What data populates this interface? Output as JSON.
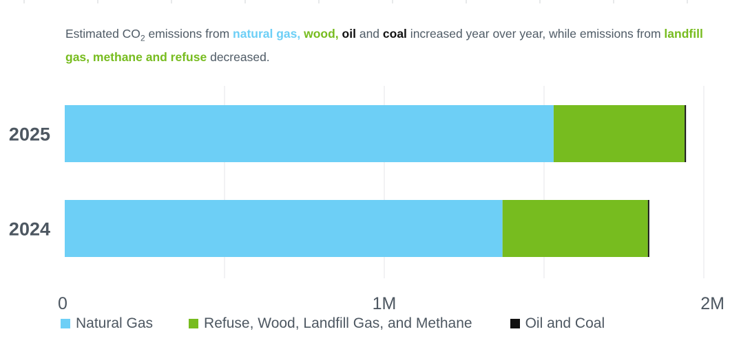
{
  "caption": {
    "p1": "Estimated CO",
    "sub": "2",
    "p2": " emissions from ",
    "hl1": "natural gas,",
    "sp1": " ",
    "hl2": "wood,",
    "sp2": " ",
    "hl3": "oil",
    "p3": " and ",
    "hl4": "coal",
    "p4": " increased year over year, while emissions from ",
    "hl5": "landfill gas, methane and refuse",
    "p5": " decreased."
  },
  "colors": {
    "natural_gas": "#6dcff6",
    "refuse": "#77bc1f",
    "oil_coal": "#111111",
    "grid": "#e4e6e8",
    "text": "#4d5761",
    "caption_text": "#4f5b66"
  },
  "chart_data": {
    "type": "bar",
    "orientation": "horizontal",
    "stacked": true,
    "categories": [
      "2025",
      "2024"
    ],
    "series": [
      {
        "name": "Natural Gas",
        "values": [
          1530000,
          1370000
        ]
      },
      {
        "name": "Refuse, Wood, Landfill Gas, and Methane",
        "values": [
          410000,
          455000
        ]
      },
      {
        "name": "Oil and Coal",
        "values": [
          4000,
          3000
        ]
      }
    ],
    "xlim": [
      0,
      2000000
    ],
    "xticks": [
      0,
      1000000,
      2000000
    ],
    "xtick_labels": [
      "0",
      "1M",
      "2M"
    ],
    "grid": true,
    "legend_position": "bottom-left"
  },
  "legend": [
    {
      "label": "Natural Gas",
      "color": "#6dcff6"
    },
    {
      "label": "Refuse, Wood, Landfill Gas, and Methane",
      "color": "#77bc1f"
    },
    {
      "label": "Oil and Coal",
      "color": "#111111"
    }
  ]
}
